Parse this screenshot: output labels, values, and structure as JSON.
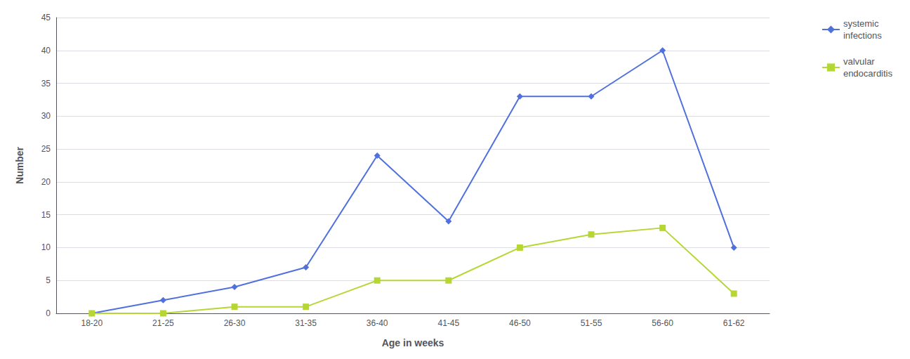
{
  "chart_data": {
    "type": "line",
    "xlabel": "Age in weeks",
    "ylabel": "Number",
    "categories": [
      "18-20",
      "21-25",
      "26-30",
      "31-35",
      "36-40",
      "41-45",
      "46-50",
      "51-55",
      "56-60",
      "61-62"
    ],
    "series": [
      {
        "name": "systemic\ninfections",
        "marker": "diamond",
        "values": [
          0,
          2,
          4,
          7,
          24,
          14,
          33,
          33,
          40,
          10
        ]
      },
      {
        "name": "valvular\nendocarditis",
        "marker": "square",
        "values": [
          0,
          0,
          1,
          1,
          5,
          5,
          10,
          12,
          13,
          3
        ]
      }
    ],
    "ylim": [
      0,
      45
    ],
    "yticks": [
      0,
      5,
      10,
      15,
      20,
      25,
      30,
      35,
      40,
      45
    ],
    "grid": true,
    "legend": "right"
  }
}
